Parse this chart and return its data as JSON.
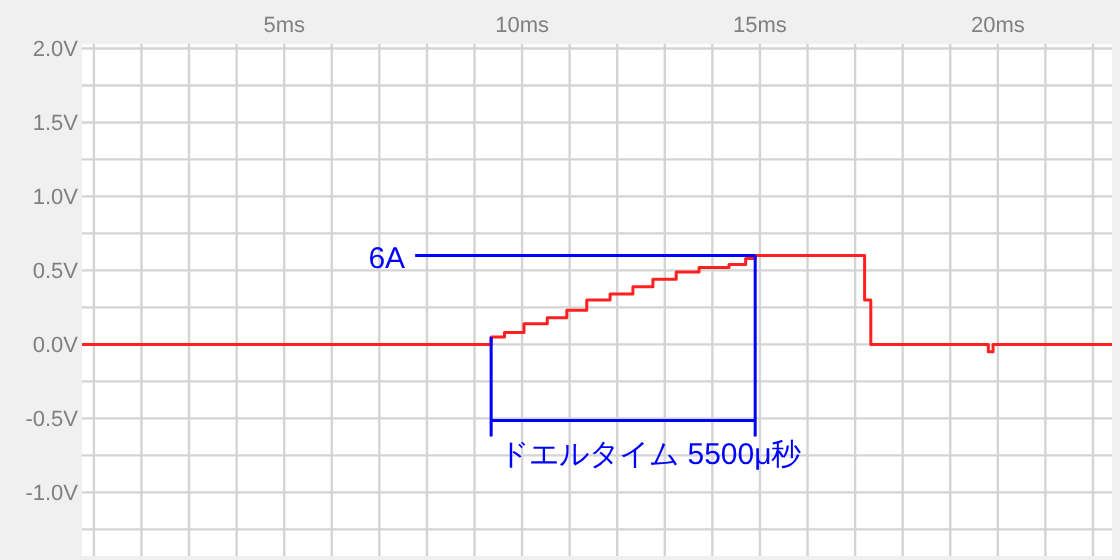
{
  "chart_data": {
    "type": "step",
    "color": "#ff2020",
    "x": [
      0.75,
      9.35,
      9.63,
      10.04,
      10.53,
      10.94,
      11.36,
      11.85,
      12.33,
      12.75,
      13.24,
      13.72,
      14.35,
      14.7,
      14.9,
      17.2,
      17.33,
      19.7,
      19.8,
      19.9,
      22.4
    ],
    "values": [
      0,
      0.05,
      0.08,
      0.14,
      0.18,
      0.23,
      0.3,
      0.34,
      0.39,
      0.44,
      0.49,
      0.52,
      0.54,
      0.58,
      0.6,
      0.3,
      0,
      0,
      -0.05,
      0,
      0
    ],
    "xlim": [
      0.75,
      22.4
    ],
    "ylim": [
      -1.43,
      2.03
    ],
    "xticks": [
      {
        "value": 1,
        "label": null
      },
      {
        "value": 2,
        "label": null
      },
      {
        "value": 3,
        "label": null
      },
      {
        "value": 4,
        "label": null
      },
      {
        "value": 5,
        "label": "5ms"
      },
      {
        "value": 6,
        "label": null
      },
      {
        "value": 7,
        "label": null
      },
      {
        "value": 8,
        "label": null
      },
      {
        "value": 9,
        "label": null
      },
      {
        "value": 10,
        "label": "10ms"
      },
      {
        "value": 11,
        "label": null
      },
      {
        "value": 12,
        "label": null
      },
      {
        "value": 13,
        "label": null
      },
      {
        "value": 14,
        "label": null
      },
      {
        "value": 15,
        "label": "15ms"
      },
      {
        "value": 16,
        "label": null
      },
      {
        "value": 17,
        "label": null
      },
      {
        "value": 18,
        "label": null
      },
      {
        "value": 19,
        "label": null
      },
      {
        "value": 20,
        "label": "20ms"
      },
      {
        "value": 21,
        "label": null
      },
      {
        "value": 22,
        "label": null
      }
    ],
    "yticks": [
      {
        "value": -1.25,
        "label": null
      },
      {
        "value": -1.0,
        "label": "-1.0V"
      },
      {
        "value": -0.75,
        "label": null
      },
      {
        "value": -0.5,
        "label": "-0.5V"
      },
      {
        "value": -0.25,
        "label": null
      },
      {
        "value": 0,
        "label": "0.0V"
      },
      {
        "value": 0.25,
        "label": null
      },
      {
        "value": 0.5,
        "label": "0.5V"
      },
      {
        "value": 0.75,
        "label": null
      },
      {
        "value": 1.0,
        "label": "1.0V"
      },
      {
        "value": 1.25,
        "label": null
      },
      {
        "value": 1.5,
        "label": "1.5V"
      },
      {
        "value": 1.75,
        "label": null
      },
      {
        "value": 2.0,
        "label": "2.0V"
      }
    ],
    "grid": true,
    "annotations": [
      {
        "text": "6A",
        "x": 14.9,
        "y": 0.6
      },
      {
        "text": "ドエルタイム 5500μ秒",
        "x": 9.35,
        "y": 0.05
      }
    ]
  }
}
